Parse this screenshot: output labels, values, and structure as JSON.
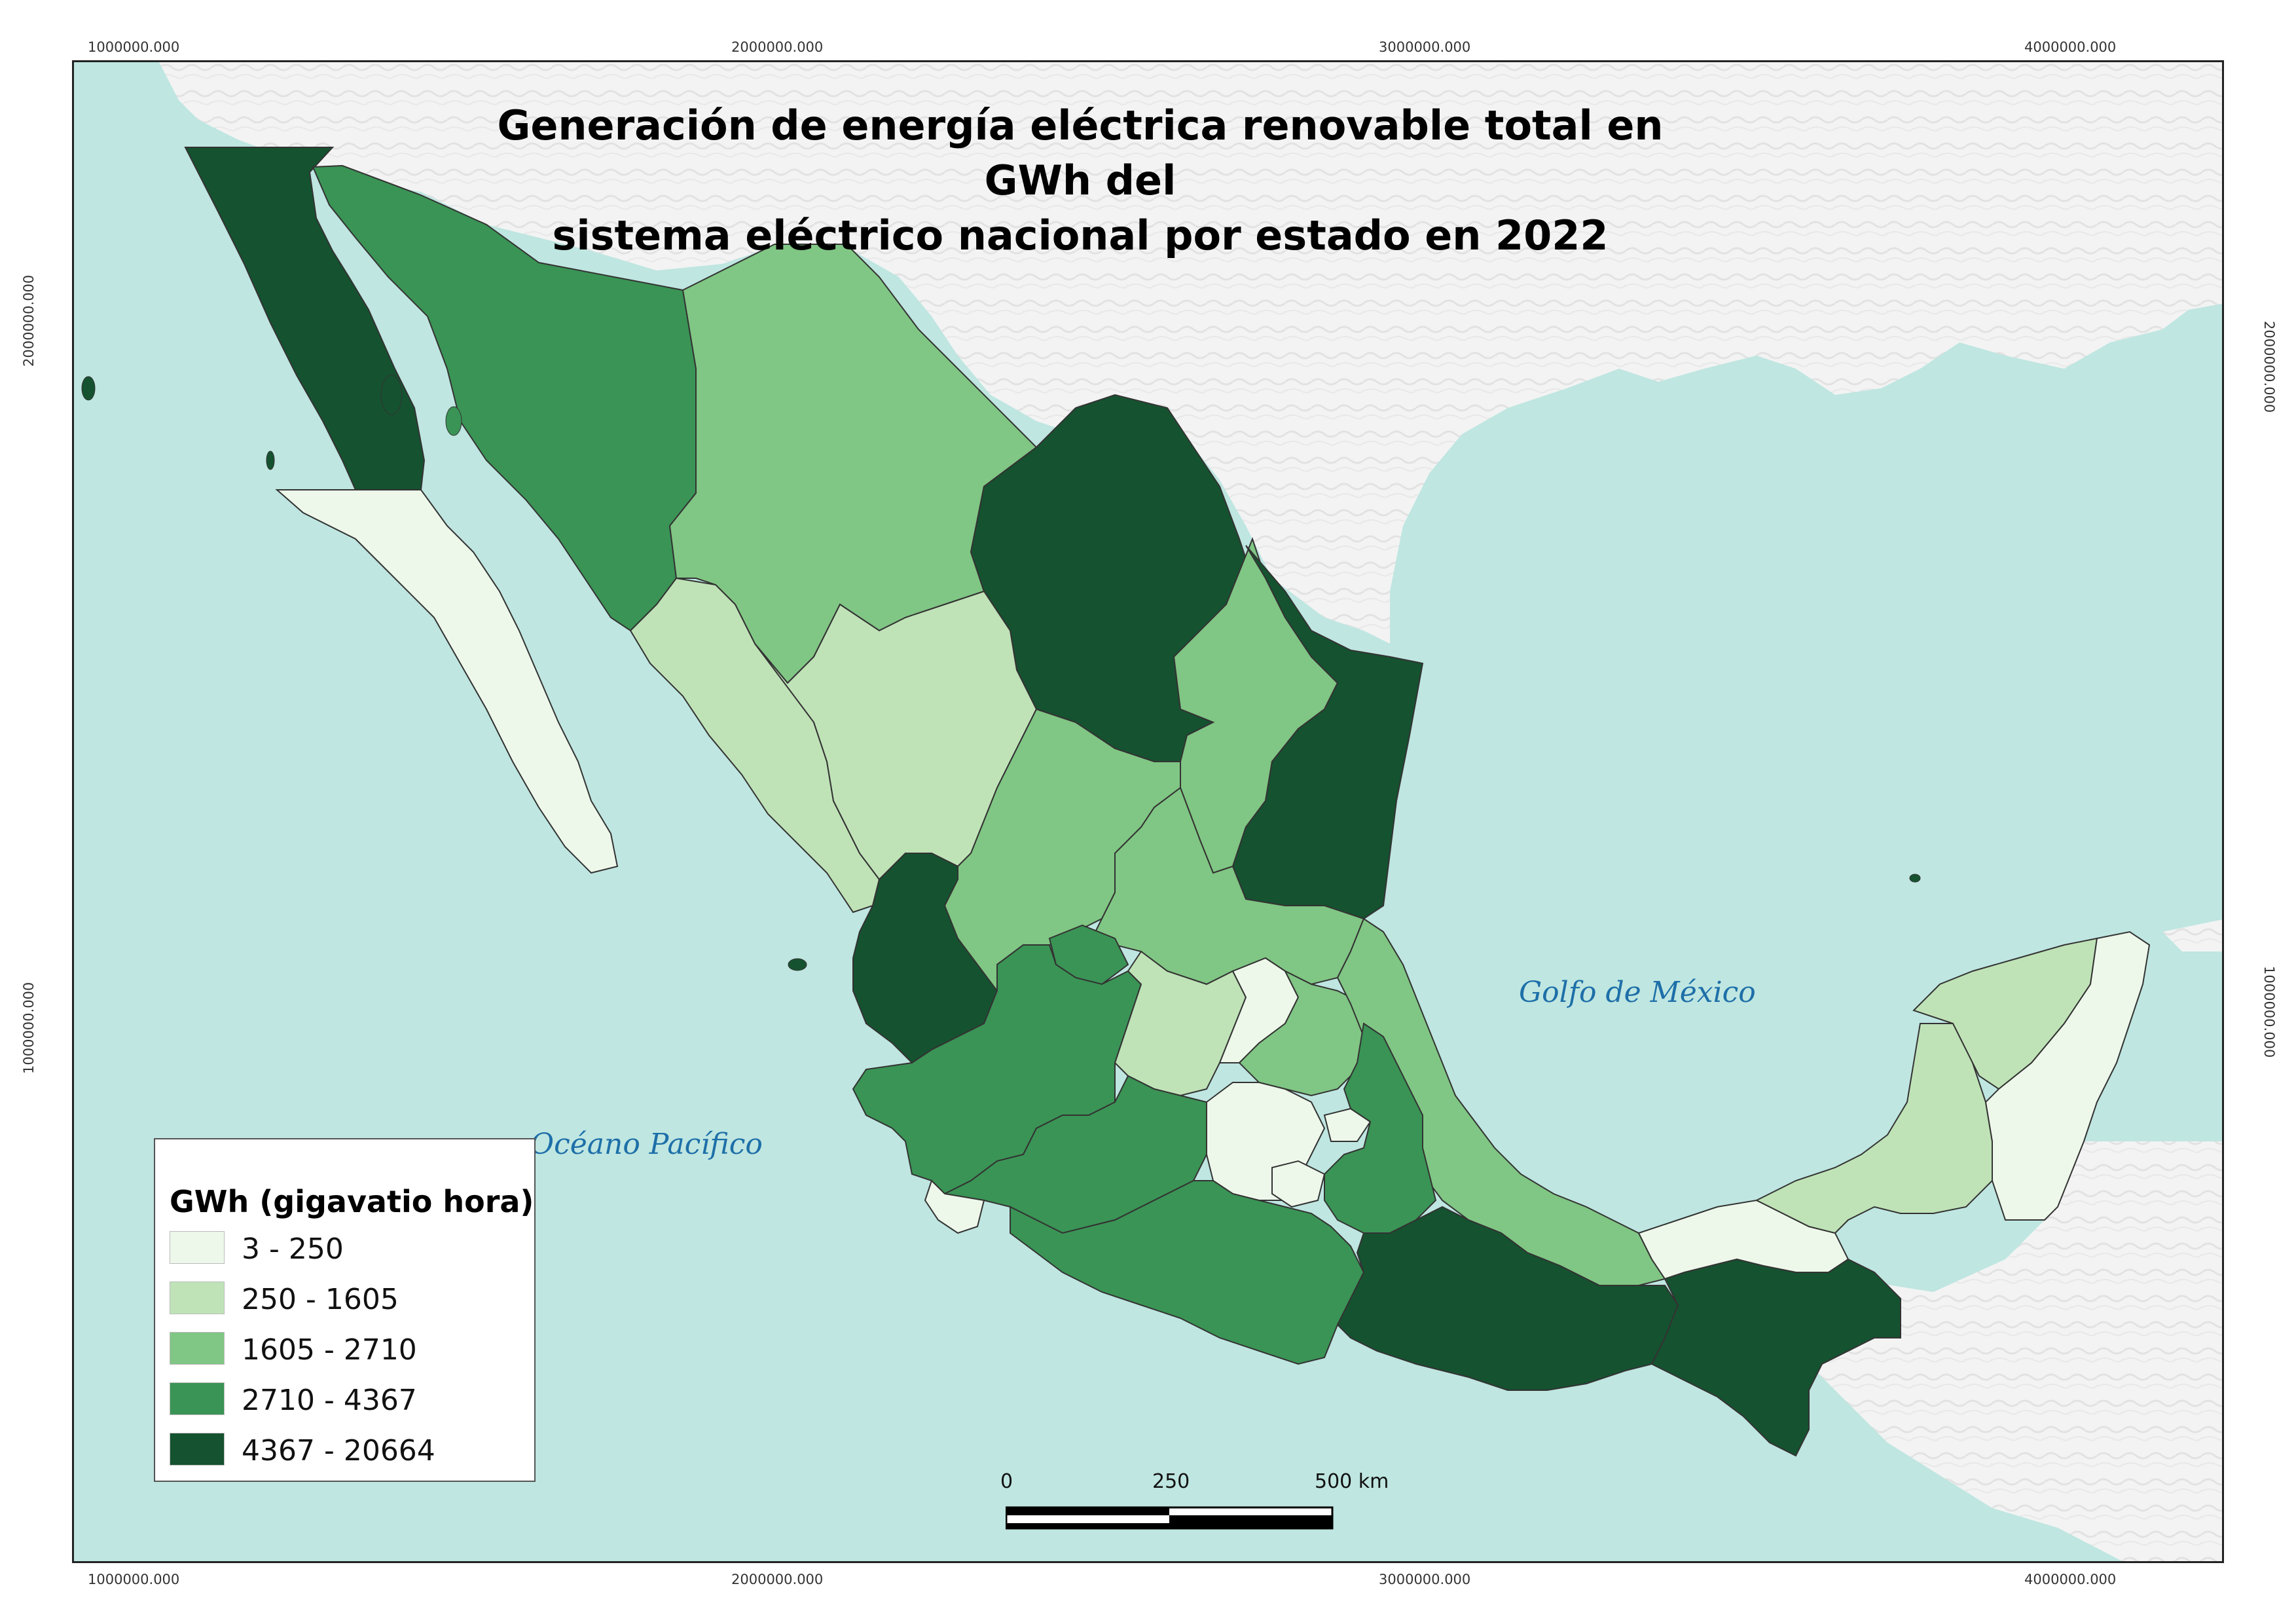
{
  "title": {
    "line1": "Generación de energía eléctrica renovable total en GWh del",
    "line2": "sistema eléctrico nacional por estado en 2022"
  },
  "coords": {
    "top": [
      "1000000.000",
      "2000000.000",
      "3000000.000",
      "4000000.000"
    ],
    "bottom": [
      "1000000.000",
      "2000000.000",
      "3000000.000",
      "4000000.000"
    ],
    "left": [
      "2000000.000",
      "1000000.000"
    ],
    "right": [
      "2000000.000",
      "1000000.000"
    ]
  },
  "labels": {
    "gulf": "Golfo de México",
    "pacific": "Océano Pacífico"
  },
  "legend": {
    "title": "GWh (gigavatio hora)",
    "classes": [
      {
        "label": "3 - 250",
        "color": "#edf8ea"
      },
      {
        "label": "250 - 1605",
        "color": "#bfe3b7"
      },
      {
        "label": "1605 - 2710",
        "color": "#80c684"
      },
      {
        "label": "2710 - 4367",
        "color": "#3a9455"
      },
      {
        "label": "4367 - 20664",
        "color": "#155230"
      }
    ]
  },
  "scalebar": {
    "labels": [
      "0",
      "250",
      "500 km"
    ]
  },
  "colors": {
    "water": "#bfe6e1",
    "land_outside": "#f4f4f4"
  }
}
